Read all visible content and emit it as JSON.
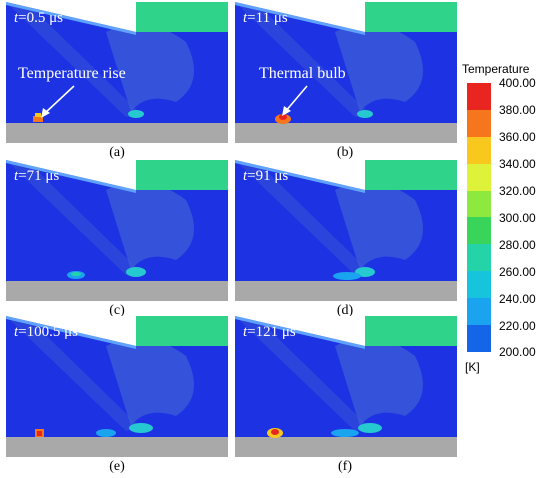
{
  "panels": [
    {
      "time_var": "t",
      "time_value": "=0.5 μs",
      "caption": "(a)",
      "annotation": "Temperature rise"
    },
    {
      "time_var": "t",
      "time_value": "=11 μs",
      "caption": "(b)",
      "annotation": "Thermal bulb"
    },
    {
      "time_var": "t",
      "time_value": "=71 μs",
      "caption": "(c)"
    },
    {
      "time_var": "t",
      "time_value": "=91 μs",
      "caption": "(d)"
    },
    {
      "time_var": "t",
      "time_value": "=100.5 μs",
      "caption": "(e)"
    },
    {
      "time_var": "t",
      "time_value": "=121 μs",
      "caption": "(f)"
    }
  ],
  "legend": {
    "title": "Temperature",
    "units": "[K]",
    "ticks": [
      "400.00",
      "380.00",
      "360.00",
      "340.00",
      "320.00",
      "300.00",
      "280.00",
      "260.00",
      "240.00",
      "220.00",
      "200.00"
    ],
    "colors": [
      "#e8251e",
      "#f5761c",
      "#f8c81f",
      "#dff23a",
      "#8ee93e",
      "#39d45a",
      "#25d3a8",
      "#17c4dd",
      "#1aa3ee",
      "#1566e6"
    ]
  },
  "colors": {
    "field": "#1d33e3",
    "wall": "#a9a9a9",
    "plume": "#3e5fd6"
  }
}
